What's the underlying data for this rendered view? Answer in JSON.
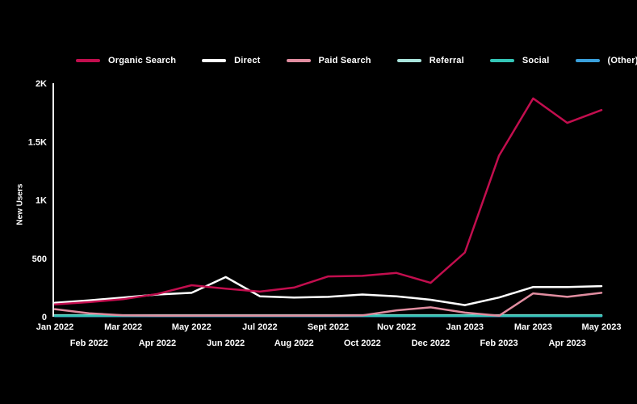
{
  "colors": {
    "background": "#000000",
    "text": "#FFFFFF",
    "axis": "#FFFFFF"
  },
  "chart_data": {
    "type": "line",
    "title": "",
    "xlabel": "",
    "ylabel": "New Users",
    "ylim": [
      0,
      2000
    ],
    "grid": false,
    "legend_position": "top",
    "ytick_values": [
      0,
      500,
      1000,
      1500,
      2000
    ],
    "ytick_labels": [
      "0",
      "500",
      "1K",
      "1.5K",
      "2K"
    ],
    "x": [
      "Jan 2022",
      "Feb 2022",
      "Mar 2022",
      "Apr 2022",
      "May 2022",
      "Jun 2022",
      "Jul 2022",
      "Aug 2022",
      "Sept 2022",
      "Oct 2022",
      "Nov 2022",
      "Dec 2022",
      "Jan 2023",
      "Feb 2023",
      "Mar 2023",
      "Apr 2023",
      "May 2023"
    ],
    "series": [
      {
        "name": "Organic Search",
        "color": "#C20E4E",
        "values": [
          105,
          125,
          150,
          195,
          270,
          240,
          215,
          250,
          345,
          350,
          375,
          290,
          550,
          1380,
          1870,
          1660,
          1770
        ]
      },
      {
        "name": "Direct",
        "color": "#FFFFFF",
        "values": [
          120,
          140,
          165,
          190,
          205,
          340,
          175,
          165,
          170,
          190,
          175,
          145,
          100,
          165,
          255,
          255,
          262
        ]
      },
      {
        "name": "Paid Search",
        "color": "#E18DA0",
        "values": [
          65,
          30,
          12,
          10,
          10,
          10,
          10,
          10,
          10,
          12,
          55,
          80,
          35,
          8,
          200,
          170,
          205
        ]
      },
      {
        "name": "Referral",
        "color": "#A9E4DC",
        "values": [
          13,
          13,
          13,
          13,
          13,
          13,
          13,
          13,
          13,
          13,
          13,
          13,
          13,
          13,
          13,
          13,
          13
        ]
      },
      {
        "name": "Social",
        "color": "#34C6B7",
        "values": [
          9,
          9,
          9,
          9,
          9,
          9,
          9,
          9,
          9,
          9,
          9,
          9,
          9,
          9,
          9,
          9,
          9
        ]
      },
      {
        "name": "(Other)",
        "color": "#3AA0DC",
        "values": [
          5,
          5,
          5,
          5,
          5,
          5,
          5,
          5,
          5,
          5,
          5,
          5,
          5,
          5,
          5,
          5,
          5
        ]
      }
    ]
  }
}
